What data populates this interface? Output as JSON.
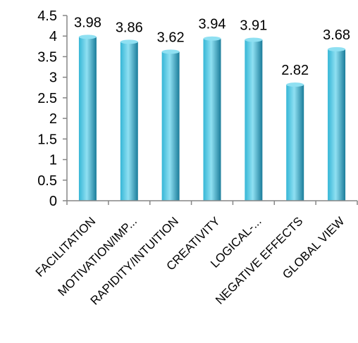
{
  "chart_data": {
    "type": "bar",
    "categories": [
      "FACILITATION",
      "MOTIVATION/IMP...",
      "RAPIDITY/INTUITION",
      "CREATIVITY",
      "LOGICAL-...",
      "NEGATIVE EFFECTS",
      "GLOBAL VIEW"
    ],
    "values": [
      3.98,
      3.86,
      3.62,
      3.94,
      3.91,
      2.82,
      3.68
    ],
    "data_labels": [
      "3.98",
      "3.86",
      "3.62",
      "3.94",
      "3.91",
      "2.82",
      "3.68"
    ],
    "yticks": [
      "0",
      "0.5",
      "1",
      "1.5",
      "2",
      "2.5",
      "3",
      "3.5",
      "4",
      "4.5"
    ],
    "ylim": [
      0,
      4.5
    ],
    "title": "",
    "xlabel": "",
    "ylabel": "",
    "grid": false,
    "legend": "none",
    "bar_color_light": "#8fe0f2",
    "bar_color_mid": "#35b6d6",
    "bar_color_dark": "#1a7c9a",
    "axis_color": "#868686"
  }
}
